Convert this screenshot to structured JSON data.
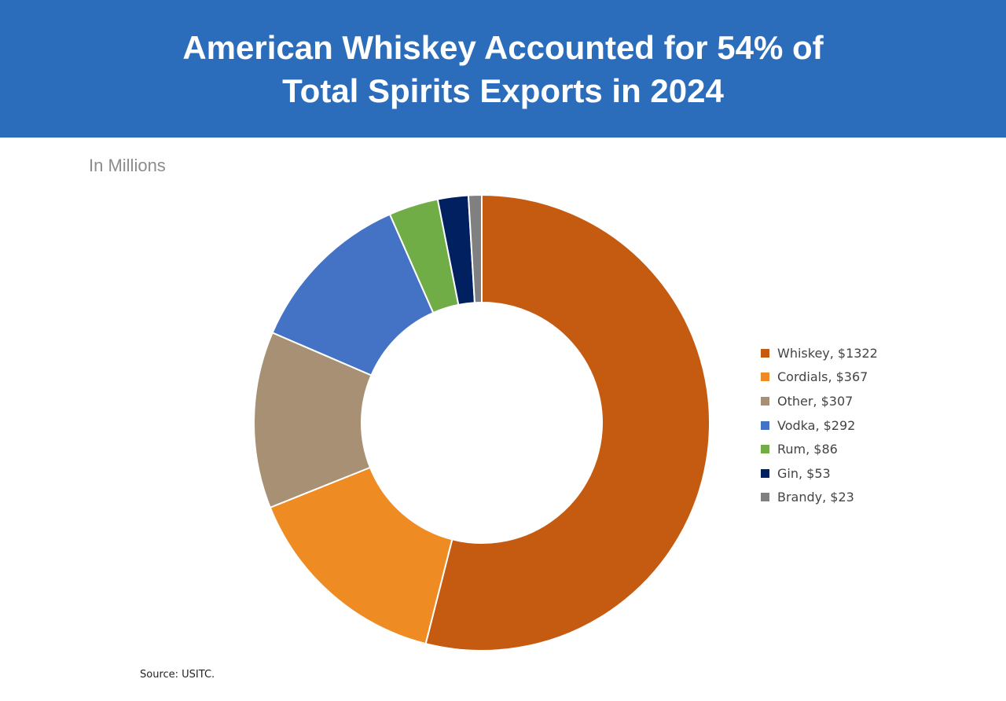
{
  "chart_data": {
    "type": "pie",
    "variant": "donut",
    "title_lines": [
      "American Whiskey Accounted for 54% of",
      "Total Spirits Exports in 2024"
    ],
    "subtitle": "In Millions",
    "source": "Source: USITC.",
    "legend_position": "right",
    "slices": [
      {
        "name": "Whiskey",
        "value": 1322,
        "label": "Whiskey, $1322",
        "color": "#c55a11"
      },
      {
        "name": "Cordials",
        "value": 367,
        "label": "Cordials, $367",
        "color": "#ee8b23"
      },
      {
        "name": "Other",
        "value": 307,
        "label": "Other, $307",
        "color": "#a89074"
      },
      {
        "name": "Vodka",
        "value": 292,
        "label": "Vodka, $292",
        "color": "#4472c4"
      },
      {
        "name": "Rum",
        "value": 86,
        "label": "Rum, $86",
        "color": "#70ad47"
      },
      {
        "name": "Gin",
        "value": 53,
        "label": "Gin, $53",
        "color": "#002060"
      },
      {
        "name": "Brandy",
        "value": 23,
        "label": "Brandy, $23",
        "color": "#808080"
      }
    ]
  }
}
